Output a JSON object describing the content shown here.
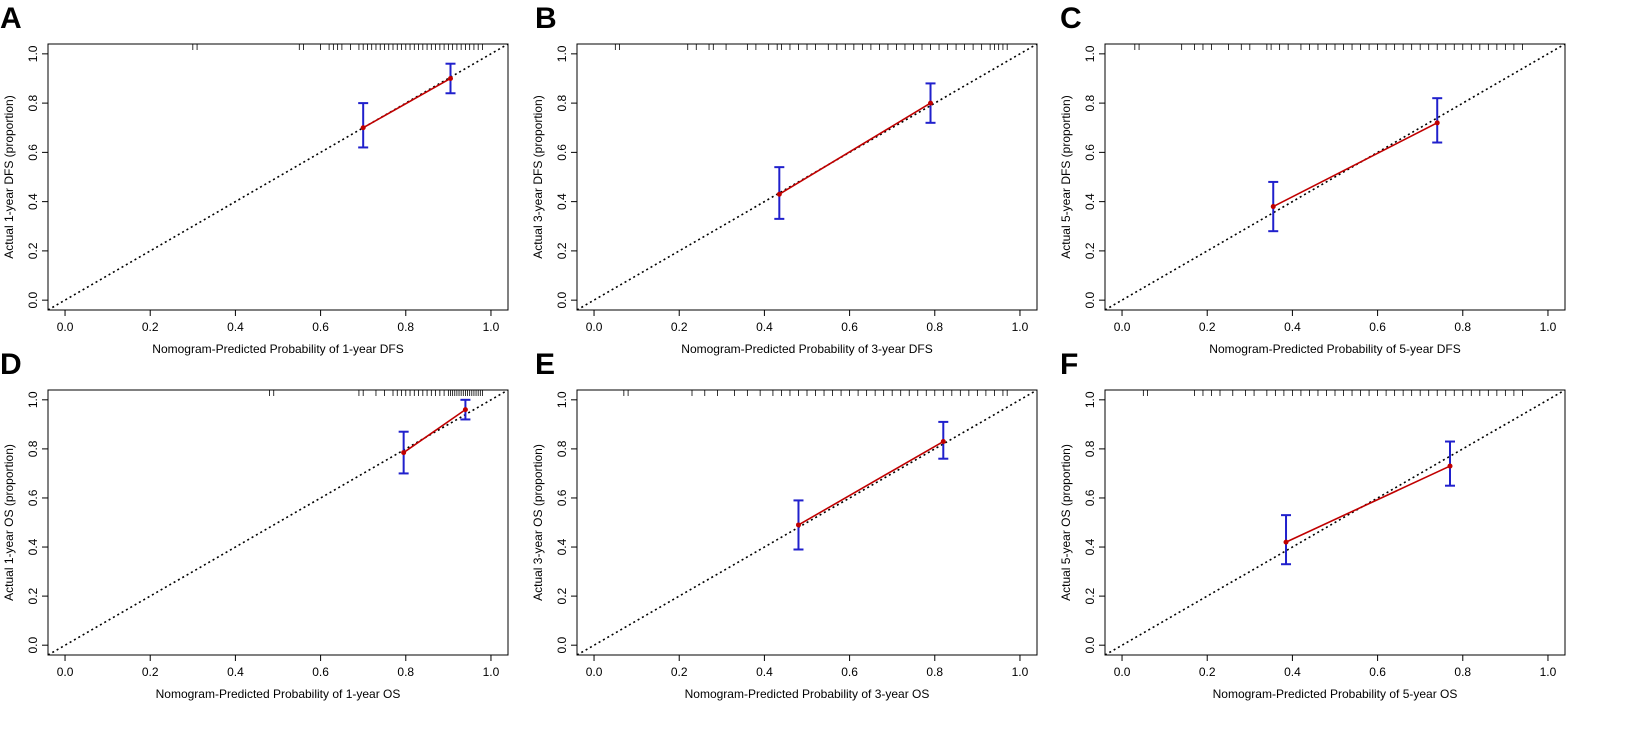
{
  "chart_data": [
    {
      "panel": "A",
      "type": "line",
      "xlabel": "Nomogram-Predicted Probability of 1-year DFS",
      "ylabel": "Actual 1-year DFS (proportion)",
      "xlim": [
        0,
        1
      ],
      "ylim": [
        0,
        1
      ],
      "x_ticks": [
        "0.0",
        "0.2",
        "0.4",
        "0.6",
        "0.8",
        "1.0"
      ],
      "y_ticks": [
        "0.0",
        "0.2",
        "0.4",
        "0.6",
        "0.8",
        "1.0"
      ],
      "ideal_line": "diagonal",
      "points": [
        {
          "x": 0.7,
          "y": 0.7,
          "ci_low": 0.62,
          "ci_high": 0.8
        },
        {
          "x": 0.905,
          "y": 0.9,
          "ci_low": 0.84,
          "ci_high": 0.96
        }
      ],
      "rug": [
        0.3,
        0.31,
        0.55,
        0.56,
        0.6,
        0.62,
        0.63,
        0.64,
        0.65,
        0.67,
        0.69,
        0.7,
        0.71,
        0.72,
        0.73,
        0.74,
        0.75,
        0.76,
        0.77,
        0.78,
        0.79,
        0.8,
        0.81,
        0.82,
        0.83,
        0.84,
        0.85,
        0.86,
        0.87,
        0.88,
        0.89,
        0.9,
        0.91,
        0.92,
        0.93,
        0.94,
        0.95,
        0.96,
        0.97,
        0.98
      ]
    },
    {
      "panel": "B",
      "type": "line",
      "xlabel": "Nomogram-Predicted Probability of 3-year DFS",
      "ylabel": "Actual 3-year DFS (proportion)",
      "xlim": [
        0,
        1
      ],
      "ylim": [
        0,
        1
      ],
      "x_ticks": [
        "0.0",
        "0.2",
        "0.4",
        "0.6",
        "0.8",
        "1.0"
      ],
      "y_ticks": [
        "0.0",
        "0.2",
        "0.4",
        "0.6",
        "0.8",
        "1.0"
      ],
      "ideal_line": "diagonal",
      "points": [
        {
          "x": 0.435,
          "y": 0.43,
          "ci_low": 0.33,
          "ci_high": 0.54
        },
        {
          "x": 0.79,
          "y": 0.8,
          "ci_low": 0.72,
          "ci_high": 0.88
        }
      ],
      "rug": [
        0.05,
        0.06,
        0.22,
        0.24,
        0.27,
        0.28,
        0.31,
        0.36,
        0.38,
        0.41,
        0.43,
        0.44,
        0.46,
        0.48,
        0.5,
        0.52,
        0.55,
        0.57,
        0.59,
        0.61,
        0.63,
        0.65,
        0.67,
        0.69,
        0.71,
        0.73,
        0.75,
        0.77,
        0.79,
        0.81,
        0.83,
        0.85,
        0.87,
        0.89,
        0.91,
        0.93,
        0.94,
        0.95,
        0.96,
        0.97
      ]
    },
    {
      "panel": "C",
      "type": "line",
      "xlabel": "Nomogram-Predicted Probability of 5-year DFS",
      "ylabel": "Actual 5-year DFS (proportion)",
      "xlim": [
        0,
        1
      ],
      "ylim": [
        0,
        1
      ],
      "x_ticks": [
        "0.0",
        "0.2",
        "0.4",
        "0.6",
        "0.8",
        "1.0"
      ],
      "y_ticks": [
        "0.0",
        "0.2",
        "0.4",
        "0.6",
        "0.8",
        "1.0"
      ],
      "ideal_line": "diagonal",
      "points": [
        {
          "x": 0.355,
          "y": 0.38,
          "ci_low": 0.28,
          "ci_high": 0.48
        },
        {
          "x": 0.74,
          "y": 0.72,
          "ci_low": 0.64,
          "ci_high": 0.82
        }
      ],
      "rug": [
        0.03,
        0.04,
        0.14,
        0.17,
        0.19,
        0.21,
        0.25,
        0.28,
        0.3,
        0.34,
        0.35,
        0.37,
        0.39,
        0.42,
        0.44,
        0.46,
        0.48,
        0.5,
        0.52,
        0.54,
        0.56,
        0.58,
        0.6,
        0.62,
        0.64,
        0.66,
        0.68,
        0.7,
        0.72,
        0.74,
        0.76,
        0.78,
        0.8,
        0.82,
        0.84,
        0.86,
        0.88,
        0.9,
        0.92,
        0.94
      ]
    },
    {
      "panel": "D",
      "type": "line",
      "xlabel": "Nomogram-Predicted Probability of 1-year OS",
      "ylabel": "Actual 1-year OS (proportion)",
      "xlim": [
        0,
        1
      ],
      "ylim": [
        0,
        1
      ],
      "x_ticks": [
        "0.0",
        "0.2",
        "0.4",
        "0.6",
        "0.8",
        "1.0"
      ],
      "y_ticks": [
        "0.0",
        "0.2",
        "0.4",
        "0.6",
        "0.8",
        "1.0"
      ],
      "ideal_line": "diagonal",
      "points": [
        {
          "x": 0.795,
          "y": 0.785,
          "ci_low": 0.7,
          "ci_high": 0.87
        },
        {
          "x": 0.94,
          "y": 0.96,
          "ci_low": 0.92,
          "ci_high": 1.0
        }
      ],
      "rug": [
        0.48,
        0.49,
        0.69,
        0.7,
        0.73,
        0.75,
        0.77,
        0.78,
        0.79,
        0.8,
        0.81,
        0.82,
        0.83,
        0.84,
        0.85,
        0.86,
        0.87,
        0.88,
        0.89,
        0.9,
        0.905,
        0.91,
        0.915,
        0.92,
        0.925,
        0.93,
        0.935,
        0.94,
        0.945,
        0.95,
        0.955,
        0.96,
        0.965,
        0.97,
        0.975,
        0.98
      ]
    },
    {
      "panel": "E",
      "type": "line",
      "xlabel": "Nomogram-Predicted Probability of 3-year OS",
      "ylabel": "Actual 3-year OS (proportion)",
      "xlim": [
        0,
        1
      ],
      "ylim": [
        0,
        1
      ],
      "x_ticks": [
        "0.0",
        "0.2",
        "0.4",
        "0.6",
        "0.8",
        "1.0"
      ],
      "y_ticks": [
        "0.0",
        "0.2",
        "0.4",
        "0.6",
        "0.8",
        "1.0"
      ],
      "ideal_line": "diagonal",
      "points": [
        {
          "x": 0.48,
          "y": 0.49,
          "ci_low": 0.39,
          "ci_high": 0.59
        },
        {
          "x": 0.82,
          "y": 0.83,
          "ci_low": 0.76,
          "ci_high": 0.91
        }
      ],
      "rug": [
        0.07,
        0.08,
        0.23,
        0.26,
        0.29,
        0.33,
        0.36,
        0.39,
        0.42,
        0.44,
        0.46,
        0.48,
        0.5,
        0.52,
        0.54,
        0.56,
        0.58,
        0.6,
        0.62,
        0.64,
        0.66,
        0.68,
        0.7,
        0.72,
        0.74,
        0.76,
        0.78,
        0.8,
        0.82,
        0.84,
        0.86,
        0.88,
        0.9,
        0.92,
        0.94,
        0.96,
        0.97
      ]
    },
    {
      "panel": "F",
      "type": "line",
      "xlabel": "Nomogram-Predicted Probability of 5-year OS",
      "ylabel": "Actual 5-year OS (proportion)",
      "xlim": [
        0,
        1
      ],
      "ylim": [
        0,
        1
      ],
      "x_ticks": [
        "0.0",
        "0.2",
        "0.4",
        "0.6",
        "0.8",
        "1.0"
      ],
      "y_ticks": [
        "0.0",
        "0.2",
        "0.4",
        "0.6",
        "0.8",
        "1.0"
      ],
      "ideal_line": "diagonal",
      "points": [
        {
          "x": 0.385,
          "y": 0.42,
          "ci_low": 0.33,
          "ci_high": 0.53
        },
        {
          "x": 0.77,
          "y": 0.73,
          "ci_low": 0.65,
          "ci_high": 0.83
        }
      ],
      "rug": [
        0.05,
        0.06,
        0.17,
        0.19,
        0.21,
        0.23,
        0.26,
        0.29,
        0.31,
        0.34,
        0.36,
        0.38,
        0.4,
        0.42,
        0.44,
        0.46,
        0.48,
        0.5,
        0.52,
        0.54,
        0.56,
        0.58,
        0.6,
        0.62,
        0.64,
        0.66,
        0.68,
        0.7,
        0.72,
        0.74,
        0.76,
        0.78,
        0.8,
        0.82,
        0.84,
        0.86,
        0.88,
        0.9,
        0.92,
        0.94
      ]
    }
  ],
  "colors": {
    "fitted_line": "#c00000",
    "error_bar": "#2020cc",
    "point": "#c00000",
    "ideal_line": "#000000"
  }
}
